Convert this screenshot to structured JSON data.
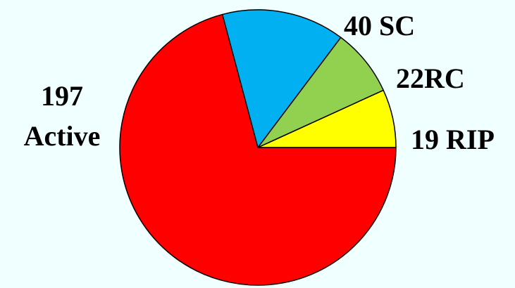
{
  "chart_data": {
    "type": "pie",
    "title": "",
    "start_angle_deg": 0,
    "direction": "counterclockwise",
    "slices": [
      {
        "label": "19 RIP",
        "value": 19,
        "color": "#FFFF00",
        "label_lines": [
          "19 RIP"
        ]
      },
      {
        "label": "22RC",
        "value": 22,
        "color": "#92D050",
        "label_lines": [
          "22RC"
        ]
      },
      {
        "label": "40 SC",
        "value": 40,
        "color": "#00B0F0",
        "label_lines": [
          "40 SC"
        ]
      },
      {
        "label": "197 Active",
        "value": 197,
        "color": "#FF0000",
        "label_lines": [
          "197",
          "Active"
        ]
      }
    ],
    "background_color": "#F0FFFF"
  }
}
